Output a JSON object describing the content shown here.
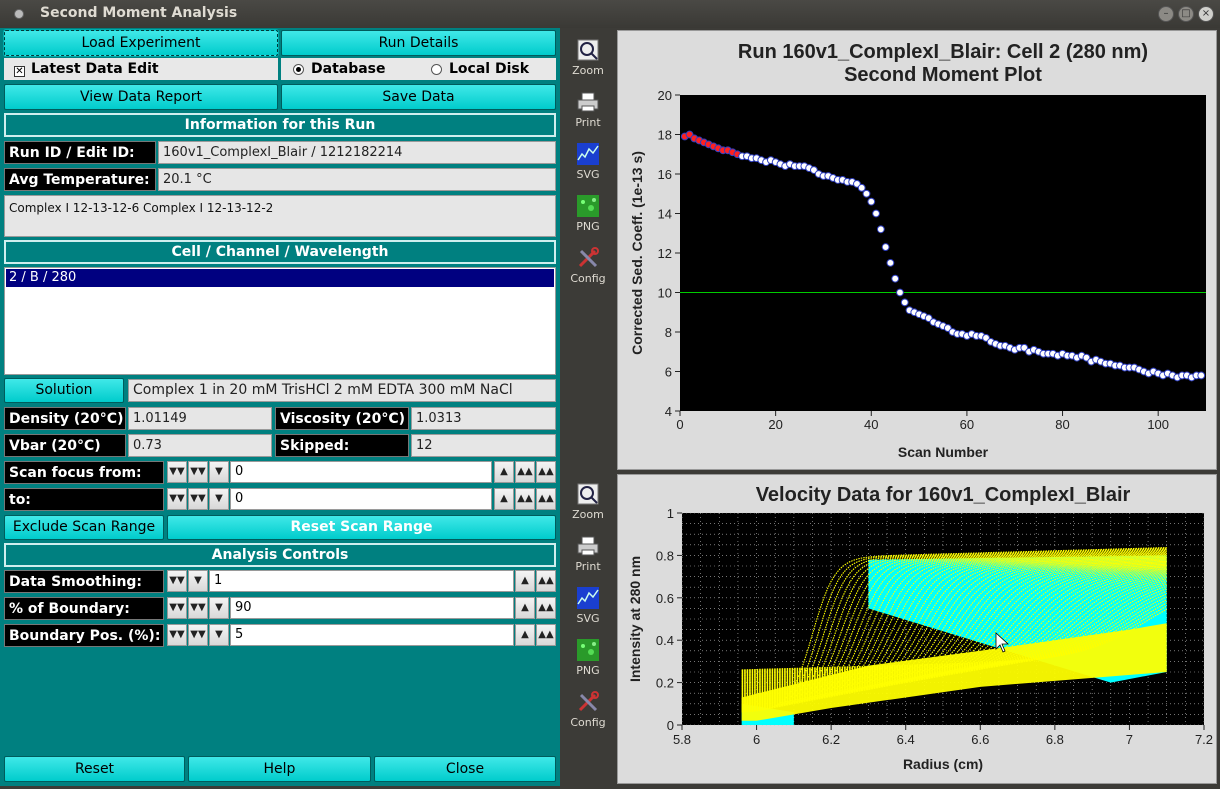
{
  "window": {
    "title": "Second Moment Analysis"
  },
  "buttons": {
    "load_experiment": "Load Experiment",
    "run_details": "Run Details",
    "view_data_report": "View Data Report",
    "save_data": "Save Data",
    "solution": "Solution",
    "exclude_scan_range": "Exclude Scan Range",
    "reset_scan_range": "Reset Scan Range",
    "reset": "Reset",
    "help": "Help",
    "close": "Close"
  },
  "options": {
    "latest_data_edit": "Latest Data Edit",
    "latest_checked": true,
    "database": "Database",
    "local_disk": "Local Disk",
    "source_selected": "database"
  },
  "info": {
    "header": "Information for this Run",
    "run_id_label": "Run ID / Edit ID:",
    "run_id_value": "160v1_ComplexI_Blair / 1212182214",
    "avg_temp_label": "Avg Temperature:",
    "avg_temp_value": "20.1 °C",
    "description": "Complex I 12-13-12-6  Complex I 12-13-12-2"
  },
  "cells": {
    "header": "Cell / Channel / Wavelength",
    "items": [
      "2 / B / 280"
    ]
  },
  "solution": {
    "value": "Complex 1 in 20 mM TrisHCl 2 mM EDTA 300 mM NaCl",
    "density_label": "Density (20°C)",
    "density_value": "1.01149",
    "viscosity_label": "Viscosity (20°C)",
    "viscosity_value": "1.0313",
    "vbar_label": "Vbar (20°C)",
    "vbar_value": "0.73",
    "skipped_label": "Skipped:",
    "skipped_value": "12"
  },
  "scan": {
    "from_label": "Scan focus from:",
    "from_value": "0",
    "to_label": "to:",
    "to_value": "0"
  },
  "analysis": {
    "header": "Analysis Controls",
    "smoothing_label": "Data Smoothing:",
    "smoothing_value": "1",
    "boundary_label": "% of Boundary:",
    "boundary_value": "90",
    "bpos_label": "Boundary Pos. (%):",
    "bpos_value": "5"
  },
  "tools": {
    "zoom": "Zoom",
    "print": "Print",
    "svg": "SVG",
    "png": "PNG",
    "config": "Config"
  },
  "colors": {
    "panel": "#008080",
    "button": "#00cccc",
    "plot_bg": "#000000",
    "point_red": "#ff2020",
    "line_green": "#00cc00",
    "yellow": "#ffff00",
    "cyan": "#00ffff"
  },
  "chart_data": [
    {
      "type": "scatter",
      "title": "Run 160v1_ComplexI_Blair: Cell 2 (280 nm)",
      "subtitle": "Second Moment Plot",
      "xlabel": "Scan Number",
      "ylabel": "Corrected Sed. Coeff. (1e-13 s)",
      "xlim": [
        0,
        110
      ],
      "ylim": [
        4,
        20
      ],
      "xticks": [
        "0",
        "20",
        "40",
        "60",
        "80",
        "100"
      ],
      "yticks": [
        "4",
        "6",
        "8",
        "10",
        "12",
        "14",
        "16",
        "18",
        "20"
      ],
      "hline": 10,
      "grid": false,
      "skipped_color": "#ff2020",
      "points": [
        [
          1,
          17.9
        ],
        [
          2,
          18.0
        ],
        [
          3,
          17.8
        ],
        [
          4,
          17.7
        ],
        [
          5,
          17.6
        ],
        [
          6,
          17.5
        ],
        [
          7,
          17.4
        ],
        [
          8,
          17.3
        ],
        [
          9,
          17.2
        ],
        [
          10,
          17.2
        ],
        [
          11,
          17.1
        ],
        [
          12,
          17.0
        ],
        [
          13,
          16.9
        ],
        [
          14,
          16.9
        ],
        [
          15,
          16.8
        ],
        [
          16,
          16.8
        ],
        [
          17,
          16.7
        ],
        [
          18,
          16.6
        ],
        [
          19,
          16.7
        ],
        [
          20,
          16.6
        ],
        [
          21,
          16.5
        ],
        [
          22,
          16.4
        ],
        [
          23,
          16.5
        ],
        [
          24,
          16.4
        ],
        [
          25,
          16.4
        ],
        [
          26,
          16.4
        ],
        [
          27,
          16.3
        ],
        [
          28,
          16.2
        ],
        [
          29,
          16.0
        ],
        [
          30,
          15.9
        ],
        [
          31,
          15.9
        ],
        [
          32,
          15.8
        ],
        [
          33,
          15.7
        ],
        [
          34,
          15.7
        ],
        [
          35,
          15.6
        ],
        [
          36,
          15.6
        ],
        [
          37,
          15.5
        ],
        [
          38,
          15.3
        ],
        [
          39,
          15.0
        ],
        [
          40,
          14.6
        ],
        [
          41,
          14.0
        ],
        [
          42,
          13.2
        ],
        [
          43,
          12.3
        ],
        [
          44,
          11.5
        ],
        [
          45,
          10.7
        ],
        [
          46,
          10.0
        ],
        [
          47,
          9.5
        ],
        [
          48,
          9.1
        ],
        [
          49,
          9.0
        ],
        [
          50,
          8.9
        ],
        [
          51,
          8.8
        ],
        [
          52,
          8.7
        ],
        [
          53,
          8.5
        ],
        [
          54,
          8.4
        ],
        [
          55,
          8.3
        ],
        [
          56,
          8.2
        ],
        [
          57,
          8.0
        ],
        [
          58,
          7.9
        ],
        [
          59,
          7.9
        ],
        [
          60,
          7.8
        ],
        [
          61,
          7.9
        ],
        [
          62,
          7.8
        ],
        [
          63,
          7.8
        ],
        [
          64,
          7.7
        ],
        [
          65,
          7.5
        ],
        [
          66,
          7.4
        ],
        [
          67,
          7.3
        ],
        [
          68,
          7.3
        ],
        [
          69,
          7.2
        ],
        [
          70,
          7.1
        ],
        [
          71,
          7.2
        ],
        [
          72,
          7.2
        ],
        [
          73,
          7.0
        ],
        [
          74,
          7.1
        ],
        [
          75,
          7.0
        ],
        [
          76,
          6.9
        ],
        [
          77,
          6.9
        ],
        [
          78,
          6.9
        ],
        [
          79,
          6.8
        ],
        [
          80,
          6.9
        ],
        [
          81,
          6.8
        ],
        [
          82,
          6.8
        ],
        [
          83,
          6.7
        ],
        [
          84,
          6.8
        ],
        [
          85,
          6.7
        ],
        [
          86,
          6.5
        ],
        [
          87,
          6.6
        ],
        [
          88,
          6.5
        ],
        [
          89,
          6.4
        ],
        [
          90,
          6.4
        ],
        [
          91,
          6.3
        ],
        [
          92,
          6.3
        ],
        [
          93,
          6.2
        ],
        [
          94,
          6.2
        ],
        [
          95,
          6.2
        ],
        [
          96,
          6.1
        ],
        [
          97,
          6.0
        ],
        [
          98,
          5.9
        ],
        [
          99,
          6.0
        ],
        [
          100,
          5.9
        ],
        [
          101,
          5.8
        ],
        [
          102,
          5.9
        ],
        [
          103,
          5.8
        ],
        [
          104,
          5.7
        ],
        [
          105,
          5.8
        ],
        [
          106,
          5.8
        ],
        [
          107,
          5.7
        ],
        [
          108,
          5.8
        ],
        [
          109,
          5.8
        ]
      ]
    },
    {
      "type": "scatter",
      "title": "Velocity Data for 160v1_ComplexI_Blair",
      "xlabel": "Radius (cm)",
      "ylabel": "Intensity at 280 nm",
      "xlim": [
        5.8,
        7.2
      ],
      "ylim": [
        0,
        1
      ],
      "xticks": [
        "5.8",
        "6",
        "6.2",
        "6.4",
        "6.6",
        "6.8",
        "7",
        "7.2"
      ],
      "yticks": [
        "0",
        "0.2",
        "0.4",
        "0.6",
        "0.8",
        "1"
      ],
      "grid": true,
      "meniscus": 5.96,
      "bottom": 7.1,
      "plateau": 0.8,
      "scan_count": 60,
      "included_color": "#ffff00",
      "excluded_color": "#00ffff"
    }
  ]
}
